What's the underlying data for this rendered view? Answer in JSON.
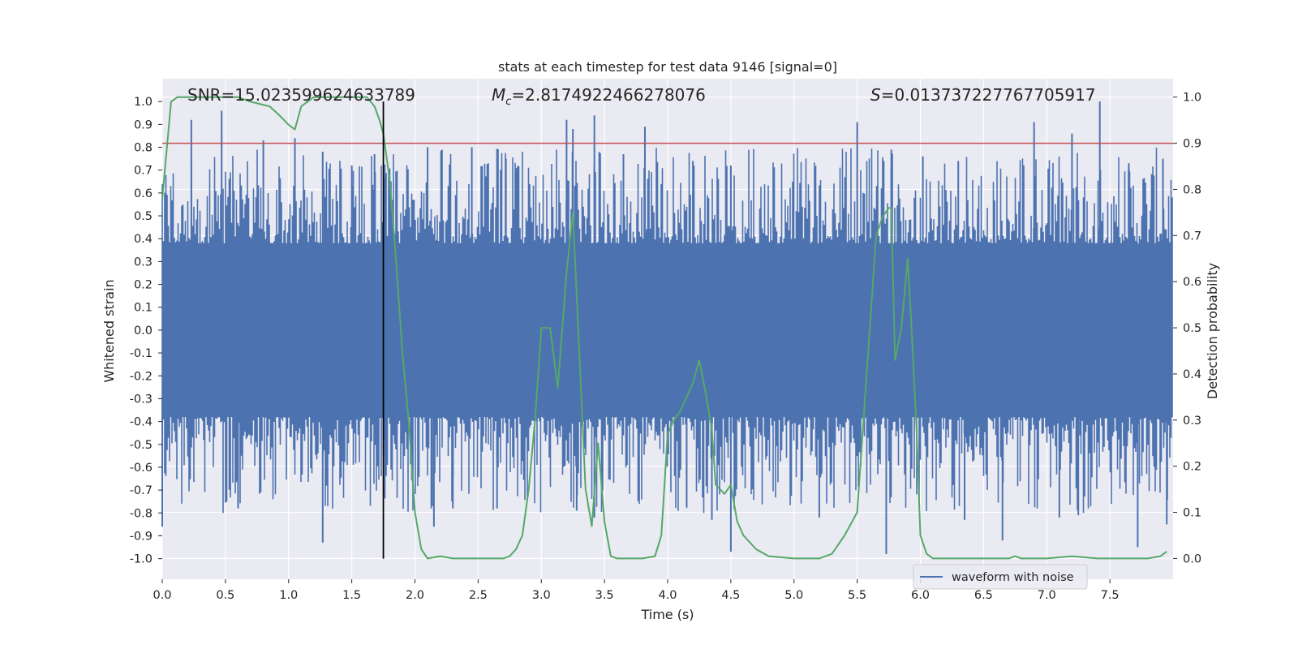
{
  "chart_data": {
    "type": "line",
    "title": "stats at each timestep for test data 9146 [signal=0]",
    "xlabel": "Time (s)",
    "ylabel": "Whitened strain",
    "y2label": "Detection probability",
    "xlim": [
      0.0,
      8.0
    ],
    "ylim": [
      -1.09,
      1.1
    ],
    "y2lim": [
      -0.045,
      1.04
    ],
    "xticks": [
      "0.0",
      "0.5",
      "1.0",
      "1.5",
      "2.0",
      "2.5",
      "3.0",
      "3.5",
      "4.0",
      "4.5",
      "5.0",
      "5.5",
      "6.0",
      "6.5",
      "7.0",
      "7.5"
    ],
    "yticks": [
      "1.0",
      "0.9",
      "0.8",
      "0.7",
      "0.6",
      "0.5",
      "0.4",
      "0.3",
      "0.2",
      "0.1",
      "0.0",
      "-0.1",
      "-0.2",
      "-0.3",
      "-0.4",
      "-0.5",
      "-0.6",
      "-0.7",
      "-0.8",
      "-0.9",
      "-1.0"
    ],
    "y2ticks": [
      "1.0",
      "0.9",
      "0.8",
      "0.7",
      "0.6",
      "0.5",
      "0.4",
      "0.3",
      "0.2",
      "0.1",
      "0.0"
    ],
    "grid": true,
    "legend": {
      "placement": "bottom-center-right",
      "entries": [
        "waveform with noise"
      ]
    },
    "annotations": {
      "snr": "SNR=15.023599624633789",
      "mc_symbol": "M",
      "mc_sub": "c",
      "mc_value": "=2.8174922466278076",
      "s_symbol": "S",
      "s_value": "=0.013737227767705917"
    },
    "threshold_line": {
      "axis": "right",
      "value": 0.9,
      "color": "#c44e52"
    },
    "marker_line": {
      "x": 1.75,
      "color": "#000000"
    },
    "series": [
      {
        "name": "waveform with noise",
        "axis": "left",
        "color": "#4c72b0",
        "render": "noise",
        "amplitude_core": 0.38,
        "peak_x": [
          0.23,
          0.47,
          0.8,
          1.05,
          1.27,
          1.5,
          1.68,
          2.1,
          2.45,
          2.72,
          3.2,
          3.25,
          3.42,
          3.65,
          3.82,
          4.2,
          4.5,
          5.5,
          5.77,
          6.02,
          6.3,
          6.9,
          7.2,
          7.42,
          7.65,
          7.92
        ],
        "peak_y": [
          0.92,
          0.96,
          0.83,
          0.84,
          0.78,
          0.72,
          0.77,
          0.8,
          0.8,
          0.75,
          0.92,
          0.88,
          0.94,
          0.77,
          0.89,
          0.74,
          0.72,
          0.91,
          0.79,
          0.76,
          0.74,
          0.91,
          0.86,
          1.0,
          0.73,
          0.75
        ],
        "trough_x": [
          0.0,
          0.6,
          1.27,
          1.75,
          2.15,
          2.3,
          2.65,
          3.28,
          3.42,
          4.15,
          4.35,
          4.5,
          5.2,
          5.73,
          6.35,
          6.65,
          7.1,
          7.25,
          7.72,
          7.95
        ],
        "trough_y": [
          -0.86,
          -0.78,
          -0.93,
          -0.55,
          -0.86,
          -0.78,
          -0.78,
          -0.79,
          -0.82,
          -0.77,
          -0.83,
          -0.97,
          -0.82,
          -0.98,
          -0.83,
          -0.92,
          -0.82,
          -0.81,
          -0.95,
          -0.85
        ]
      },
      {
        "name": "",
        "axis": "right",
        "color": "#55a868",
        "render": "line",
        "x": [
          0.0,
          0.07,
          0.12,
          0.3,
          0.5,
          0.6,
          0.7,
          0.85,
          0.93,
          1.0,
          1.05,
          1.1,
          1.2,
          1.3,
          1.5,
          1.62,
          1.68,
          1.72,
          1.75,
          1.8,
          1.85,
          1.9,
          1.95,
          2.0,
          2.05,
          2.1,
          2.2,
          2.3,
          2.4,
          2.6,
          2.7,
          2.75,
          2.8,
          2.85,
          2.9,
          2.95,
          3.0,
          3.07,
          3.13,
          3.2,
          3.25,
          3.3,
          3.35,
          3.4,
          3.45,
          3.5,
          3.55,
          3.6,
          3.7,
          3.8,
          3.9,
          3.95,
          4.0,
          4.05,
          4.1,
          4.2,
          4.25,
          4.3,
          4.35,
          4.38,
          4.45,
          4.5,
          4.55,
          4.6,
          4.7,
          4.8,
          5.0,
          5.2,
          5.3,
          5.4,
          5.5,
          5.55,
          5.6,
          5.65,
          5.7,
          5.75,
          5.77,
          5.8,
          5.85,
          5.9,
          5.93,
          5.97,
          6.0,
          6.05,
          6.1,
          6.15,
          6.2,
          6.5,
          6.7,
          6.75,
          6.8,
          7.0,
          7.2,
          7.4,
          7.6,
          7.8,
          7.9,
          7.95
        ],
        "y": [
          0.78,
          0.99,
          1.0,
          1.0,
          1.0,
          1.0,
          0.99,
          0.98,
          0.96,
          0.94,
          0.93,
          0.98,
          1.0,
          1.0,
          1.0,
          1.0,
          0.98,
          0.95,
          0.92,
          0.82,
          0.65,
          0.45,
          0.3,
          0.1,
          0.02,
          0.0,
          0.005,
          0.0,
          0.0,
          0.0,
          0.0,
          0.005,
          0.02,
          0.05,
          0.15,
          0.3,
          0.5,
          0.5,
          0.37,
          0.62,
          0.75,
          0.45,
          0.15,
          0.07,
          0.25,
          0.08,
          0.005,
          0.0,
          0.0,
          0.0,
          0.005,
          0.05,
          0.27,
          0.3,
          0.32,
          0.38,
          0.43,
          0.36,
          0.28,
          0.16,
          0.14,
          0.16,
          0.08,
          0.05,
          0.02,
          0.005,
          0.0,
          0.0,
          0.01,
          0.05,
          0.1,
          0.3,
          0.5,
          0.7,
          0.74,
          0.76,
          0.76,
          0.43,
          0.5,
          0.65,
          0.5,
          0.28,
          0.05,
          0.01,
          0.0,
          0.0,
          0.0,
          0.0,
          0.0,
          0.005,
          0.0,
          0.0,
          0.005,
          0.0,
          0.0,
          0.0,
          0.005,
          0.015
        ]
      }
    ]
  }
}
